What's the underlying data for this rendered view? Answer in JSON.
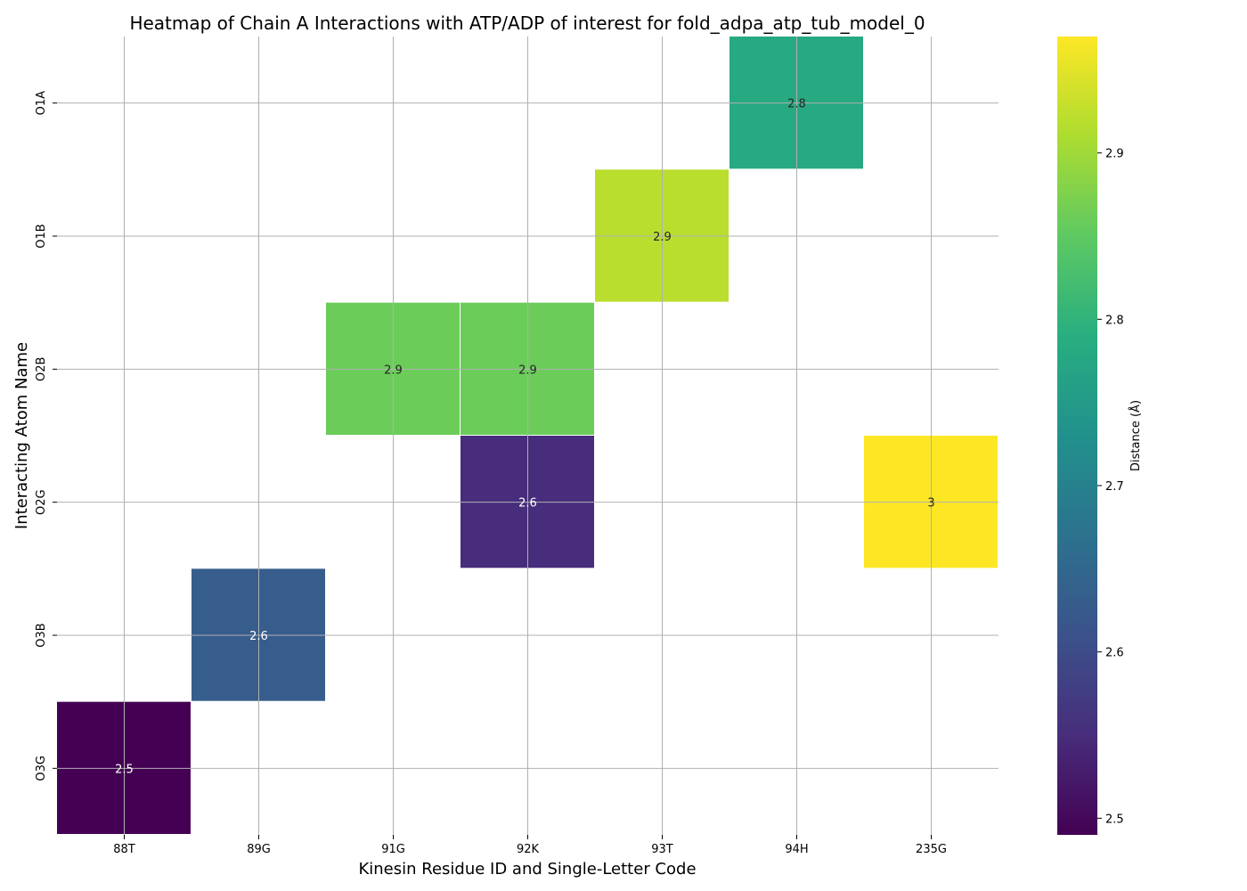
{
  "chart_data": {
    "type": "heatmap",
    "title": "Heatmap of Chain A Interactions with ATP/ADP of interest for fold_adpa_atp_tub_model_0",
    "xlabel": "Kinesin Residue ID and Single-Letter Code",
    "ylabel": "Interacting Atom Name",
    "x_categories": [
      "88T",
      "89G",
      "91G",
      "92K",
      "93T",
      "94H",
      "235G"
    ],
    "y_categories": [
      "O1A",
      "O1B",
      "O2B",
      "O2G",
      "O3B",
      "O3G"
    ],
    "cells": [
      {
        "x": "94H",
        "y": "O1A",
        "value": 2.78,
        "label": "2.8"
      },
      {
        "x": "93T",
        "y": "O1B",
        "value": 2.92,
        "label": "2.9"
      },
      {
        "x": "91G",
        "y": "O2B",
        "value": 2.86,
        "label": "2.9"
      },
      {
        "x": "92K",
        "y": "O2B",
        "value": 2.86,
        "label": "2.9"
      },
      {
        "x": "92K",
        "y": "O2G",
        "value": 2.55,
        "label": "2.6"
      },
      {
        "x": "235G",
        "y": "O2G",
        "value": 2.97,
        "label": "3"
      },
      {
        "x": "89G",
        "y": "O3B",
        "value": 2.63,
        "label": "2.6"
      },
      {
        "x": "88T",
        "y": "O3G",
        "value": 2.49,
        "label": "2.5"
      }
    ],
    "grid": true,
    "colormap": "viridis",
    "colorbar": {
      "label": "Distance (Å)",
      "range": [
        2.49,
        2.97
      ],
      "ticks": [
        2.5,
        2.6,
        2.7,
        2.8,
        2.9
      ]
    }
  }
}
